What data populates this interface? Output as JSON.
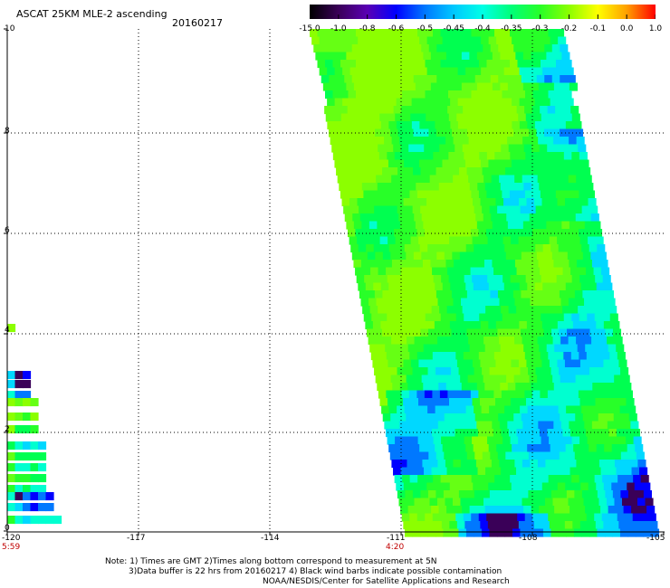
{
  "header": {
    "title": "ASCAT 25KM MLE-2 ascending",
    "date": "20160217"
  },
  "colorbar": {
    "labels": [
      "-15.0",
      "-1.0",
      "-0.8",
      "-0.6",
      "-0.5",
      "-0.45",
      "-0.4",
      "-0.35",
      "-0.3",
      "-0.2",
      "-0.1",
      "0.0",
      "1.0"
    ],
    "colors": [
      "#000000",
      "#3a0058",
      "#5a00b4",
      "#0000ff",
      "#0078ff",
      "#00c8ff",
      "#00ffe6",
      "#00ff78",
      "#28ff28",
      "#8cff00",
      "#ffff00",
      "#ffa000",
      "#ff0000"
    ]
  },
  "axes": {
    "x_labels": [
      "-120",
      "-117",
      "-114",
      "-111",
      "-108",
      "-105"
    ],
    "y_labels": [
      "0",
      "2",
      "4",
      "6",
      "8",
      "10"
    ]
  },
  "times": [
    "5:59",
    "4:20"
  ],
  "notes": [
    "Note: 1) Times are GMT 2)Times along bottom correspond to measurement at 5N",
    "3)Data buffer is 22 hrs from 20160217 4) Black wind barbs indicate possible contamination",
    "NOAA/NESDIS/Center for Satellite Applications and Research"
  ]
}
